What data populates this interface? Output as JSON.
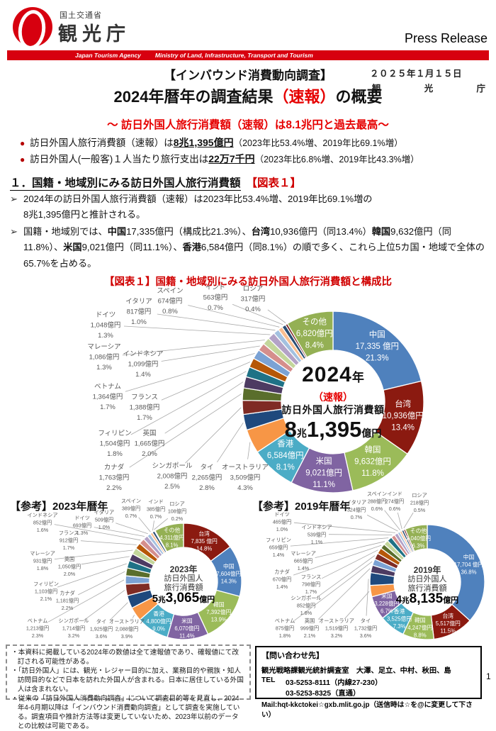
{
  "header": {
    "ministry": "国土交通省",
    "agency": "観光庁",
    "press_release": "Press Release",
    "bar_left": "Japan Tourism Agency",
    "bar_right": "Ministry of Land, Infrastructure, Transport and Tourism"
  },
  "title": {
    "survey_tag": "【インバウンド消費動向調査】",
    "date": "２０２５年１月１５日",
    "org": [
      "観",
      "光",
      "庁"
    ],
    "main_pre": "2024年暦年の調査結果",
    "main_red": "（速報）",
    "main_post": "の概要",
    "slogan": "～ 訪日外国人旅行消費額（速報）は8.1兆円と過去最高～",
    "bullet_char": "●",
    "bullets": [
      {
        "pre": "訪日外国人旅行消費額（速報）は",
        "strong": "8兆1,395億円",
        "post": "（2023年比53.4%増、2019年比69.1%増）"
      },
      {
        "pre": "訪日外国人(一般客)１人当たり旅行支出は",
        "strong": "22万7千円",
        "post": "（2023年比6.8%増、2019年比43.3%増）"
      }
    ]
  },
  "section1": {
    "marker": "➢",
    "heading": "１．国籍・地域別にみる訪日外国人旅行消費額",
    "heading_ref": "【図表１】",
    "para1_line1": "2024年の訪日外国人旅行消費額（速報）は2023年比53.4%増、2019年比69.1%増の",
    "para1_line2": "8兆1,395億円と推計される。",
    "para2_segments": [
      {
        "t": "国籍・地域別では、"
      },
      {
        "t": "中国",
        "b": 1
      },
      {
        "t": "17,335億円（構成比21.3%）、"
      },
      {
        "t": "台湾",
        "b": 1
      },
      {
        "t": "10,936億円（同13.4%）"
      },
      {
        "t": "韓国",
        "b": 1
      },
      {
        "t": "9,632億円（同11.8%）、"
      },
      {
        "t": "米国",
        "b": 1
      },
      {
        "t": "9,021億円（同11.1%）、"
      },
      {
        "t": "香港",
        "b": 1
      },
      {
        "t": "6,584億円（同8.1%）の順で多く、これら上位5カ国・地域で全体の65.7%を占める。"
      }
    ]
  },
  "country_colors": {
    "中国": "#4F81BD",
    "台湾": "#8B1A10",
    "韓国": "#9BBB59",
    "米国": "#8064A2",
    "香港": "#4BACC6",
    "オーストラリア": "#F79646",
    "タイ": "#1F497D",
    "シンガポール": "#7F2B24",
    "カナダ": "#5A6E2C",
    "英国": "#4D3B62",
    "フィリピン": "#1F7286",
    "フランス": "#B65708",
    "ベトナム": "#7BA2D4",
    "インドネシア": "#D58E8C",
    "マレーシア": "#C3D69B",
    "ドイツ": "#B3A2C7",
    "イタリア": "#A3C1E0",
    "スペイン": "#F9BE8F",
    "インド": "#2A4E74",
    "ロシア": "#7A2520",
    "その他": "#94B054"
  },
  "chart_data": [
    {
      "id": "y2024",
      "type": "pie",
      "title": "【図表１】国籍・地域別にみる訪日外国人旅行消費額と構成比",
      "center": {
        "year": "2024",
        "year_unit": "年",
        "note": "（速報）",
        "desc1": "訪日外国人旅行消費額",
        "total_a": "8",
        "total_a_unit": "兆",
        "total_b": "1,395",
        "total_b_unit": "億円"
      },
      "slices": [
        {
          "name": "中国",
          "value": "17,335 億円",
          "pct": 21.3,
          "pct_label": "21.3%"
        },
        {
          "name": "台湾",
          "value": "10,936億円",
          "pct": 13.4,
          "pct_label": "13.4%"
        },
        {
          "name": "韓国",
          "value": "9,632億円",
          "pct": 11.8,
          "pct_label": "11.8%"
        },
        {
          "name": "米国",
          "value": "9,021億円",
          "pct": 11.1,
          "pct_label": "11.1%"
        },
        {
          "name": "香港",
          "value": "6,584億円",
          "pct": 8.1,
          "pct_label": "8.1%"
        },
        {
          "name": "オーストラリア",
          "value": "3,509億円",
          "pct": 4.3,
          "pct_label": "4.3%"
        },
        {
          "name": "タイ",
          "value": "2,265億円",
          "pct": 2.8,
          "pct_label": "2.8%"
        },
        {
          "name": "シンガポール",
          "value": "2,008億円",
          "pct": 2.5,
          "pct_label": "2.5%"
        },
        {
          "name": "カナダ",
          "value": "1,763億円",
          "pct": 2.2,
          "pct_label": "2.2%"
        },
        {
          "name": "英国",
          "value": "1,665億円",
          "pct": 2.0,
          "pct_label": "2.0%"
        },
        {
          "name": "フィリピン",
          "value": "1,504億円",
          "pct": 1.8,
          "pct_label": "1.8%"
        },
        {
          "name": "フランス",
          "value": "1,388億円",
          "pct": 1.7,
          "pct_label": "1.7%"
        },
        {
          "name": "ベトナム",
          "value": "1,364億円",
          "pct": 1.7,
          "pct_label": "1.7%"
        },
        {
          "name": "インドネシア",
          "value": "1,099億円",
          "pct": 1.4,
          "pct_label": "1.4%"
        },
        {
          "name": "マレーシア",
          "value": "1,086億円",
          "pct": 1.3,
          "pct_label": "1.3%"
        },
        {
          "name": "ドイツ",
          "value": "1,048億円",
          "pct": 1.3,
          "pct_label": "1.3%"
        },
        {
          "name": "イタリア",
          "value": "817億円",
          "pct": 1.0,
          "pct_label": "1.0%"
        },
        {
          "name": "スペイン",
          "value": "674億円",
          "pct": 0.8,
          "pct_label": "0.8%"
        },
        {
          "name": "インド",
          "value": "563億円",
          "pct": 0.7,
          "pct_label": "0.7%"
        },
        {
          "name": "ロシア",
          "value": "317億円",
          "pct": 0.4,
          "pct_label": "0.4%"
        },
        {
          "name": "その他",
          "value": "6,820億円",
          "pct": 8.4,
          "pct_label": "8.4%"
        }
      ]
    },
    {
      "id": "y2023",
      "type": "pie",
      "title": "【参考】2023年暦年",
      "center": {
        "year": "2023年",
        "desc1": "訪日外国人",
        "desc2": "旅行消費額",
        "total_a": "5",
        "total_a_unit": "兆",
        "total_b": "3,065",
        "total_b_unit": "億円"
      },
      "slices": [
        {
          "name": "台湾",
          "value": "7,835 億円",
          "pct": 14.8,
          "pct_label": "14.8%"
        },
        {
          "name": "中国",
          "value": "7,604億円",
          "pct": 14.3,
          "pct_label": "14.3%"
        },
        {
          "name": "韓国",
          "value": "7,392億円",
          "pct": 13.9,
          "pct_label": "13.9%"
        },
        {
          "name": "米国",
          "value": "6,070億円",
          "pct": 11.4,
          "pct_label": "11.4%"
        },
        {
          "name": "香港",
          "value": "4,800億円",
          "pct": 9.0,
          "pct_label": "9.0%"
        },
        {
          "name": "オーストラリア",
          "value": "2,088億円",
          "pct": 3.9,
          "pct_label": "3.9%"
        },
        {
          "name": "タイ",
          "value": "1,925億円",
          "pct": 3.6,
          "pct_label": "3.6%"
        },
        {
          "name": "シンガポール",
          "value": "1,714億円",
          "pct": 3.2,
          "pct_label": "3.2%"
        },
        {
          "name": "ベトナム",
          "value": "1,213億円",
          "pct": 2.3,
          "pct_label": "2.3%"
        },
        {
          "name": "カナダ",
          "value": "1,181億円",
          "pct": 2.2,
          "pct_label": "2.2%"
        },
        {
          "name": "フィリピン",
          "value": "1,103億円",
          "pct": 2.1,
          "pct_label": "2.1%"
        },
        {
          "name": "英国",
          "value": "1,050億円",
          "pct": 2.0,
          "pct_label": "2.0%"
        },
        {
          "name": "マレーシア",
          "value": "931億円",
          "pct": 1.8,
          "pct_label": "1.8%"
        },
        {
          "name": "フランス",
          "value": "912億円",
          "pct": 1.7,
          "pct_label": "1.7%"
        },
        {
          "name": "インドネシア",
          "value": "852億円",
          "pct": 1.6,
          "pct_label": "1.6%"
        },
        {
          "name": "ドイツ",
          "value": "693億円",
          "pct": 1.3,
          "pct_label": "1.3%"
        },
        {
          "name": "イタリア",
          "value": "509億円",
          "pct": 1.0,
          "pct_label": "1.0%"
        },
        {
          "name": "スペイン",
          "value": "389億円",
          "pct": 0.7,
          "pct_label": "0.7%"
        },
        {
          "name": "インド",
          "value": "385億円",
          "pct": 0.7,
          "pct_label": "0.7%"
        },
        {
          "name": "ロシア",
          "value": "108億円",
          "pct": 0.2,
          "pct_label": "0.2%"
        },
        {
          "name": "その他",
          "value": "4,311億円",
          "pct": 8.1,
          "pct_label": "8.1%"
        }
      ]
    },
    {
      "id": "y2019",
      "type": "pie",
      "title": "【参考】2019年暦年",
      "center": {
        "year": "2019年",
        "desc1": "訪日外国人",
        "desc2": "旅行消費額",
        "total_a": "4",
        "total_a_unit": "兆",
        "total_b": "8,135",
        "total_b_unit": "億円"
      },
      "slices": [
        {
          "name": "中国",
          "value": "17,704 億円",
          "pct": 36.8,
          "pct_label": "36.8%"
        },
        {
          "name": "台湾",
          "value": "5,517億円",
          "pct": 11.5,
          "pct_label": "11.5%"
        },
        {
          "name": "韓国",
          "value": "4,247億円",
          "pct": 8.8,
          "pct_label": "8.8%"
        },
        {
          "name": "香港",
          "value": "3,525億円",
          "pct": 7.3,
          "pct_label": "7.3%"
        },
        {
          "name": "米国",
          "value": "3,228億円",
          "pct": 6.7,
          "pct_label": "6.7%"
        },
        {
          "name": "オーストラリア",
          "value": "1,519億円",
          "pct": 3.2,
          "pct_label": "3.2%"
        },
        {
          "name": "タイ",
          "value": "1,732億円",
          "pct": 3.6,
          "pct_label": "3.6%"
        },
        {
          "name": "英国",
          "value": "999億円",
          "pct": 2.1,
          "pct_label": "2.1%"
        },
        {
          "name": "ベトナム",
          "value": "875億円",
          "pct": 1.8,
          "pct_label": "1.8%"
        },
        {
          "name": "シンガポール",
          "value": "852億円",
          "pct": 1.8,
          "pct_label": "1.8%"
        },
        {
          "name": "フランス",
          "value": "798億円",
          "pct": 1.7,
          "pct_label": "1.7%"
        },
        {
          "name": "カナダ",
          "value": "670億円",
          "pct": 1.4,
          "pct_label": "1.4%"
        },
        {
          "name": "マレーシア",
          "value": "665億円",
          "pct": 1.4,
          "pct_label": "1.4%"
        },
        {
          "name": "フィリピン",
          "value": "659億円",
          "pct": 1.4,
          "pct_label": "1.4%"
        },
        {
          "name": "インドネシア",
          "value": "539億円",
          "pct": 1.1,
          "pct_label": "1.1%"
        },
        {
          "name": "ドイツ",
          "value": "465億円",
          "pct": 1.0,
          "pct_label": "1.0%"
        },
        {
          "name": "イタリア",
          "value": "324億円",
          "pct": 0.7,
          "pct_label": "0.7%"
        },
        {
          "name": "スペイン",
          "value": "288億円",
          "pct": 0.6,
          "pct_label": "0.6%"
        },
        {
          "name": "インド",
          "value": "274億円",
          "pct": 0.6,
          "pct_label": "0.6%"
        },
        {
          "name": "ロシア",
          "value": "218億円",
          "pct": 0.5,
          "pct_label": "0.5%"
        },
        {
          "name": "その他",
          "value": "3,040億円",
          "pct": 6.3,
          "pct_label": "6.3%"
        }
      ]
    }
  ],
  "notes": {
    "items": [
      "・本資料に掲載している2024年の数値は全て速報値であり、確報値にて改訂される可能性がある。",
      "・「訪日外国人」には、観光・レジャー目的に加え、業務目的や親族・知人訪問目的などで日本を訪れた外国人が含まれる。日本に居住している外国人は含まれない。",
      "・従来の「訪日外国人消費動向調査」について調査目的等を見直し、2024年4-6月期以降は「インバウンド消費動向調査」として調査を実施している。調査項目や推計方法等は変更していないため、2023年以前のデータとの比較は可能である。"
    ]
  },
  "contact": {
    "title": "【問い合わせ先】",
    "dept": "観光戦略課観光統計調査室　大澤、足立、中村、秋田、島",
    "tel_label": "TEL",
    "tel1": "03-5253-8111（内線27-230）",
    "tel2": "03-5253-8325（直通）",
    "mail": "Mail:hqt-kkctokei☆gxb.mlit.go.jp（送信時は☆を@に変更して下さい）"
  },
  "page": {
    "number": "1"
  }
}
